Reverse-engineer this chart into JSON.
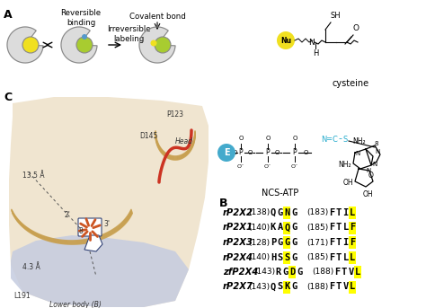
{
  "panel_A_label": "A",
  "panel_B_label": "B",
  "panel_C_label": "C",
  "sequence_rows": [
    {
      "name": "rP2X2",
      "num1": "(138)",
      "seq1": [
        "Q",
        "G",
        "N",
        "G"
      ],
      "num2": "(183)",
      "seq2": [
        "F",
        "T",
        "I",
        "L"
      ],
      "hl1": [
        2
      ],
      "hl2": [
        3
      ]
    },
    {
      "name": "rP2X1",
      "num1": "(140)",
      "seq1": [
        "K",
        "A",
        "Q",
        "G"
      ],
      "num2": "(185)",
      "seq2": [
        "F",
        "T",
        "L",
        "F"
      ],
      "hl1": [
        2
      ],
      "hl2": [
        3
      ]
    },
    {
      "name": "rP2X3",
      "num1": "(128)",
      "seq1": [
        "P",
        "G",
        "G",
        "G"
      ],
      "num2": "(171)",
      "seq2": [
        "F",
        "T",
        "I",
        "F"
      ],
      "hl1": [
        2
      ],
      "hl2": [
        3
      ]
    },
    {
      "name": "rP2X4",
      "num1": "(140)",
      "seq1": [
        "H",
        "S",
        "S",
        "G"
      ],
      "num2": "(185)",
      "seq2": [
        "F",
        "T",
        "L",
        "L"
      ],
      "hl1": [
        2
      ],
      "hl2": [
        3
      ]
    },
    {
      "name": "zfP2X4",
      "num1": "(143)",
      "seq1": [
        "R",
        "G",
        "D",
        "G"
      ],
      "num2": "(188)",
      "seq2": [
        "F",
        "T",
        "V",
        "L"
      ],
      "hl1": [
        2
      ],
      "hl2": [
        3
      ]
    },
    {
      "name": "rP2X7",
      "num1": "(143)",
      "seq1": [
        "Q",
        "S",
        "K",
        "G"
      ],
      "num2": "(188)",
      "seq2": [
        "F",
        "T",
        "V",
        "L"
      ],
      "hl1": [
        2
      ],
      "hl2": [
        3
      ]
    }
  ],
  "yellow": "#FFFF00",
  "background": "#FFFFFF",
  "tan_bg": "#f0e0c0",
  "blue_region": "#c8d0e0",
  "gold_curve": "#c8a050",
  "red_helix": "#cc3322",
  "orange_sticks": "#cc5522"
}
